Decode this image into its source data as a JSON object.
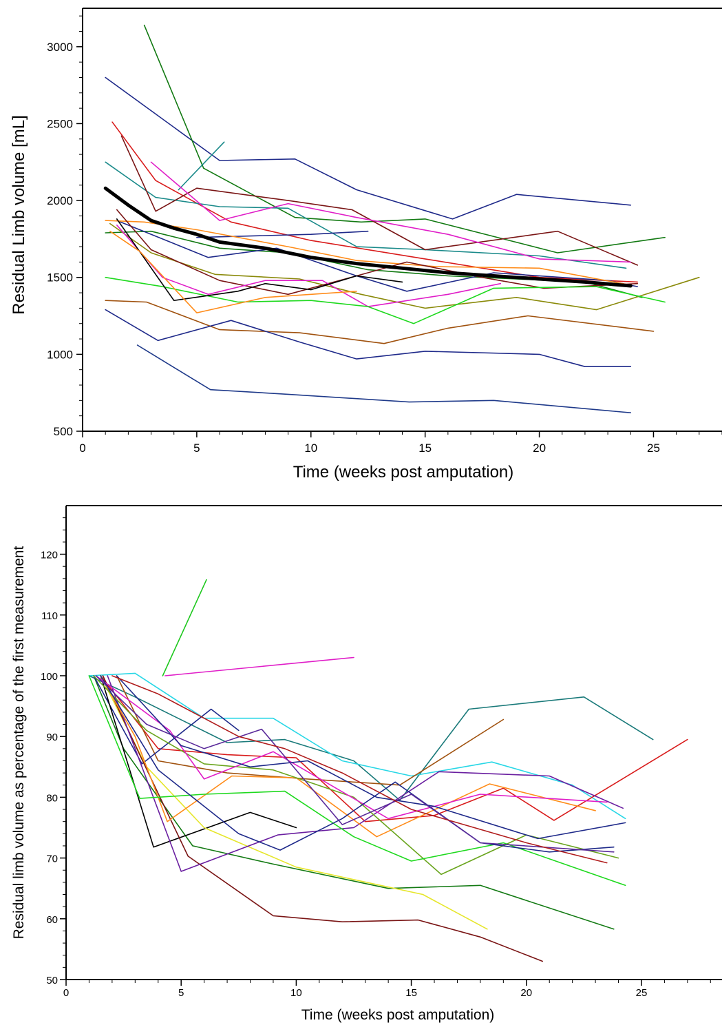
{
  "chart_data": [
    {
      "type": "line",
      "title": "",
      "xlabel": "Time (weeks post amputation)",
      "ylabel": "Residual Limb volume [mL]",
      "xlim": [
        0,
        28
      ],
      "ylim": [
        500,
        3250
      ],
      "xticks": [
        0,
        5,
        10,
        15,
        20,
        25
      ],
      "yticks": [
        500,
        1000,
        1500,
        2000,
        2500,
        3000
      ],
      "grid": false,
      "series": [
        {
          "color": "#1f2a8a",
          "x": [
            1,
            6,
            9.3,
            12,
            16.2,
            19,
            24
          ],
          "y": [
            2800,
            2260,
            2270,
            2070,
            1880,
            2040,
            1970
          ]
        },
        {
          "color": "#137a13",
          "x": [
            2.7,
            5.3,
            9.3,
            12.2,
            15,
            20.8,
            25.5
          ],
          "y": [
            3140,
            2210,
            1890,
            1860,
            1880,
            1660,
            1760
          ]
        },
        {
          "color": "#d91c1c",
          "x": [
            1.3,
            3.2,
            6.5,
            10,
            15,
            20,
            24.3
          ],
          "y": [
            2510,
            2130,
            1860,
            1740,
            1620,
            1500,
            1470
          ]
        },
        {
          "color": "#1a8a8a",
          "x": [
            1,
            3.2,
            6,
            9,
            12,
            15,
            20,
            23.8
          ],
          "y": [
            2250,
            2020,
            1960,
            1950,
            1700,
            1680,
            1640,
            1560
          ]
        },
        {
          "color": "#1a8a8a",
          "x": [
            4.2,
            6.2
          ],
          "y": [
            2070,
            2380
          ]
        },
        {
          "color": "#7a1515",
          "x": [
            1.7,
            3.2,
            5,
            9,
            11.8,
            15,
            20.8,
            24.3
          ],
          "y": [
            2420,
            1930,
            2080,
            2000,
            1940,
            1680,
            1800,
            1580
          ]
        },
        {
          "color": "#e01ec8",
          "x": [
            3,
            6,
            9,
            12,
            16,
            20,
            24
          ],
          "y": [
            2250,
            1870,
            1980,
            1890,
            1780,
            1620,
            1600
          ]
        },
        {
          "color": "#1f2a8a",
          "x": [
            5,
            10,
            12.5
          ],
          "y": [
            1760,
            1780,
            1800
          ]
        },
        {
          "color": "#137a13",
          "x": [
            1,
            3,
            6,
            9,
            12.5,
            16,
            22,
            24.5
          ],
          "y": [
            1790,
            1800,
            1690,
            1660,
            1550,
            1510,
            1470,
            1370
          ]
        },
        {
          "color": "#1f2a8a",
          "x": [
            1.5,
            5.5,
            8.5,
            12,
            14.2,
            18,
            23,
            24.3
          ],
          "y": [
            1870,
            1630,
            1690,
            1510,
            1410,
            1530,
            1480,
            1440
          ]
        },
        {
          "color": "#ff8c1a",
          "x": [
            1,
            2.7,
            5,
            9,
            12,
            15.5,
            20,
            24
          ],
          "y": [
            1870,
            1860,
            1810,
            1700,
            1610,
            1570,
            1560,
            1450
          ]
        },
        {
          "color": "#8a8a0a",
          "x": [
            1.2,
            3,
            5.8,
            9.5,
            12.2,
            15,
            19,
            22.5,
            27
          ],
          "y": [
            1850,
            1660,
            1520,
            1490,
            1390,
            1300,
            1370,
            1290,
            1500
          ]
        },
        {
          "color": "#7a1515",
          "x": [
            1.5,
            3,
            6,
            9,
            12,
            14.2,
            17.5,
            20.2,
            24.3
          ],
          "y": [
            1940,
            1680,
            1480,
            1390,
            1510,
            1600,
            1500,
            1430,
            1460
          ]
        },
        {
          "color": "#e01ec8",
          "x": [
            1.5,
            3.5,
            5.5,
            8,
            10.5,
            12.5,
            16,
            18.3
          ],
          "y": [
            1840,
            1500,
            1390,
            1480,
            1480,
            1310,
            1390,
            1460
          ]
        },
        {
          "color": "#1ed91e",
          "x": [
            1,
            3.5,
            6.8,
            10,
            12.5,
            14.5,
            18,
            22.5,
            25.5
          ],
          "y": [
            1500,
            1440,
            1340,
            1350,
            1310,
            1200,
            1430,
            1440,
            1340
          ]
        },
        {
          "color": "#000000",
          "x": [
            1.5,
            4,
            6.8,
            8,
            10,
            12,
            14
          ],
          "y": [
            1880,
            1350,
            1410,
            1460,
            1420,
            1510,
            1470
          ]
        },
        {
          "color": "#ff8c1a",
          "x": [
            1.2,
            2.5,
            5,
            8,
            12
          ],
          "y": [
            1800,
            1670,
            1270,
            1370,
            1410
          ]
        },
        {
          "color": "#a0520f",
          "x": [
            1,
            2.8,
            6,
            9.5,
            13.2,
            16,
            19.5,
            25
          ],
          "y": [
            1350,
            1340,
            1160,
            1140,
            1070,
            1170,
            1250,
            1150
          ]
        },
        {
          "color": "#1f2a8a",
          "x": [
            1,
            3.3,
            6.5,
            9.5,
            12,
            15,
            20,
            22,
            24
          ],
          "y": [
            1290,
            1090,
            1220,
            1080,
            970,
            1020,
            1000,
            920,
            920
          ]
        },
        {
          "color": "#1f3a8a",
          "x": [
            2.4,
            5.6,
            9,
            14.3,
            18,
            24
          ],
          "y": [
            1060,
            770,
            740,
            690,
            700,
            620
          ]
        },
        {
          "color": "#000000",
          "x": [
            1,
            2,
            3,
            4,
            5,
            6,
            8,
            10,
            12,
            14,
            16,
            18,
            20,
            22,
            24
          ],
          "y": [
            2080,
            1970,
            1870,
            1820,
            1780,
            1730,
            1690,
            1630,
            1590,
            1560,
            1530,
            1510,
            1490,
            1470,
            1445
          ],
          "bold": true
        }
      ]
    },
    {
      "type": "line",
      "title": "",
      "xlabel": "Time (weeks post amputation)",
      "ylabel": "Residual limb volume as percentage of the first measurement",
      "xlim": [
        0,
        28.5
      ],
      "ylim": [
        50,
        128
      ],
      "xticks": [
        0,
        5,
        10,
        15,
        20,
        25
      ],
      "yticks": [
        50,
        60,
        70,
        80,
        90,
        100,
        110,
        120
      ],
      "grid": false,
      "series": [
        {
          "color": "#1ec81e",
          "x": [
            4.2,
            6.1
          ],
          "y": [
            100,
            115.8
          ]
        },
        {
          "color": "#e01ec8",
          "x": [
            4.3,
            12.5
          ],
          "y": [
            100,
            103
          ]
        },
        {
          "color": "#137a13",
          "x": [
            1.2,
            2.5,
            5.5,
            9,
            14,
            18,
            23.8
          ],
          "y": [
            100,
            88,
            72,
            69,
            65,
            65.5,
            58.3
          ]
        },
        {
          "color": "#1a7a7a",
          "x": [
            1,
            3,
            7,
            9.5,
            12.5,
            14.5,
            17.5,
            22.5,
            25.5
          ],
          "y": [
            100,
            96.5,
            89,
            89.5,
            86,
            79.5,
            94.5,
            96.5,
            89.5
          ]
        },
        {
          "color": "#28d7e6",
          "x": [
            1,
            3,
            6,
            9,
            12,
            15,
            18.5,
            22,
            24.3
          ],
          "y": [
            100,
            100.4,
            93,
            93,
            86,
            83.5,
            85.8,
            82,
            76.5
          ]
        },
        {
          "color": "#d91c1c",
          "x": [
            1.5,
            4,
            7,
            10,
            13,
            16,
            19,
            21.2,
            27
          ],
          "y": [
            100,
            88,
            87,
            86.5,
            76,
            77,
            81.5,
            76.2,
            89.5
          ]
        },
        {
          "color": "#a0520f",
          "x": [
            2.2,
            4,
            7,
            10.5,
            14.5,
            19
          ],
          "y": [
            100,
            86,
            84,
            83,
            82,
            92.8
          ]
        },
        {
          "color": "#1f2a8a",
          "x": [
            1.2,
            3.3,
            6.3,
            7.5
          ],
          "y": [
            100,
            85.5,
            94.5,
            91
          ]
        },
        {
          "color": "#000000",
          "x": [
            1.5,
            3.8,
            8,
            10
          ],
          "y": [
            100,
            71.8,
            77.5,
            75
          ]
        },
        {
          "color": "#e6e62a",
          "x": [
            1.5,
            3.5,
            6,
            10,
            15.5,
            18.3
          ],
          "y": [
            100,
            85,
            75,
            68.5,
            64,
            58.3
          ]
        },
        {
          "color": "#7a1515",
          "x": [
            1.6,
            3.2,
            5.3,
            9,
            12,
            15.3,
            18,
            20.7
          ],
          "y": [
            100,
            87,
            70.3,
            60.5,
            59.5,
            59.8,
            57,
            53
          ]
        },
        {
          "color": "#6a1fa0",
          "x": [
            1.8,
            3,
            5,
            9.2,
            12.5,
            16.2,
            21,
            24.2
          ],
          "y": [
            100,
            88,
            67.8,
            73.8,
            75,
            84.2,
            83.5,
            78.2
          ]
        },
        {
          "color": "#ff8c1a",
          "x": [
            1.5,
            3,
            4.4,
            7.2,
            10,
            13.5,
            18.4,
            23
          ],
          "y": [
            100,
            90,
            76,
            83.5,
            83.2,
            73.5,
            82.2,
            77.8
          ]
        },
        {
          "color": "#6aa51e",
          "x": [
            1.2,
            3.5,
            6,
            9,
            12.5,
            16.3,
            20,
            24
          ],
          "y": [
            100,
            91,
            85.5,
            84.5,
            80,
            67.3,
            73.8,
            70
          ]
        },
        {
          "color": "#1ed91e",
          "x": [
            1,
            3.2,
            6,
            9.5,
            12.5,
            15,
            19,
            24.3
          ],
          "y": [
            100,
            79.8,
            80.5,
            81,
            73.5,
            69.5,
            72.5,
            65.5
          ]
        },
        {
          "color": "#e01ec8",
          "x": [
            1.3,
            4.5,
            6,
            9,
            14,
            18,
            23.5
          ],
          "y": [
            100,
            91,
            83,
            87.5,
            76.5,
            80.5,
            79.2
          ]
        },
        {
          "color": "#1f2a8a",
          "x": [
            2.2,
            5,
            8,
            10.5,
            13.5,
            16,
            20.5,
            24.3
          ],
          "y": [
            100,
            88.5,
            85,
            86,
            80,
            78.5,
            73.2,
            75.8
          ]
        },
        {
          "color": "#1f2a8a",
          "x": [
            1.5,
            4,
            7.5,
            9.3,
            12,
            14.3,
            18,
            21,
            23.8
          ],
          "y": [
            100,
            84.5,
            74,
            71.3,
            76.5,
            82.5,
            72.5,
            71,
            71.8
          ]
        },
        {
          "color": "#5a2a9a",
          "x": [
            1.3,
            3.5,
            6,
            8.5,
            12,
            15,
            18,
            23.8
          ],
          "y": [
            100,
            92,
            88,
            91.2,
            75.5,
            80.5,
            72.5,
            71
          ]
        },
        {
          "color": "#b01c1c",
          "x": [
            2,
            4,
            7.5,
            9.5,
            12,
            15,
            20,
            23.5
          ],
          "y": [
            100,
            97,
            90,
            88,
            84,
            78,
            72.5,
            69.2
          ]
        }
      ]
    }
  ]
}
